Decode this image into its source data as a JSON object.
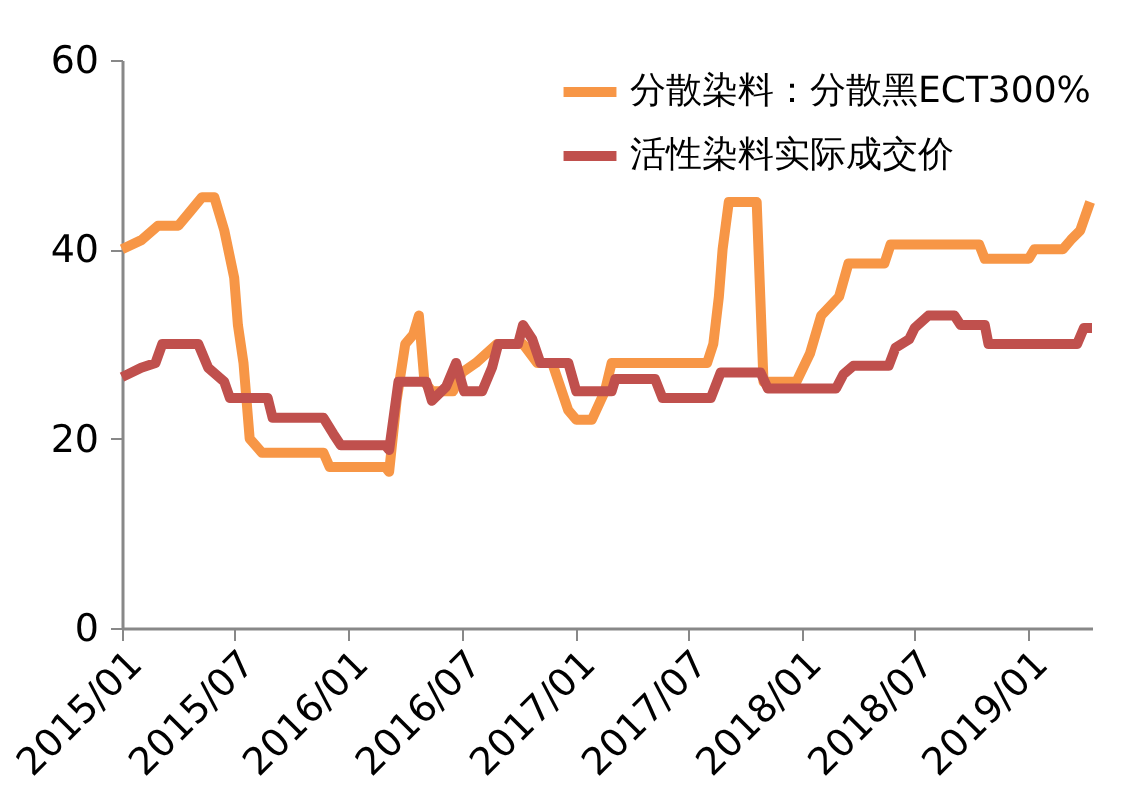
{
  "chart_data": {
    "type": "line",
    "xlim": [
      "2015-01-01",
      "2019-04-15"
    ],
    "xticks": [
      {
        "value": "2015-01",
        "label": "2015/01"
      },
      {
        "value": "2015-07",
        "label": "2015/07"
      },
      {
        "value": "2016-01",
        "label": "2016/01"
      },
      {
        "value": "2016-07",
        "label": "2016/07"
      },
      {
        "value": "2017-01",
        "label": "2017/01"
      },
      {
        "value": "2017-07",
        "label": "2017/07"
      },
      {
        "value": "2018-01",
        "label": "2018/01"
      },
      {
        "value": "2018-07",
        "label": "2018/07"
      },
      {
        "value": "2019-01",
        "label": "2019/01"
      }
    ],
    "ylim": [
      0,
      60
    ],
    "yticks": [
      0,
      20,
      40,
      60
    ],
    "grid": false,
    "legend": "top right",
    "marker": "none",
    "line_style": "solid",
    "series": [
      {
        "name": "分散染料：分散黑ECT300%",
        "color": "#f79646",
        "x": [
          "2015-01-01",
          "2015-02-02",
          "2015-02-28",
          "2015-04-02",
          "2015-04-21",
          "2015-05-10",
          "2015-05-30",
          "2015-06-15",
          "2015-07-01",
          "2015-07-07",
          "2015-07-16",
          "2015-07-26",
          "2015-08-15",
          "2015-11-22",
          "2015-12-02",
          "2016-03-01",
          "2016-03-07",
          "2016-03-19",
          "2016-04-02",
          "2016-04-15",
          "2016-04-24",
          "2016-05-03",
          "2016-05-15",
          "2016-06-18",
          "2016-07-03",
          "2016-07-25",
          "2016-08-28",
          "2016-10-09",
          "2016-11-01",
          "2016-11-25",
          "2016-12-21",
          "2017-01-03",
          "2017-01-28",
          "2017-02-18",
          "2017-03-01",
          "2017-08-02",
          "2017-08-12",
          "2017-08-21",
          "2017-08-27",
          "2017-09-06",
          "2017-10-21",
          "2017-11-01",
          "2017-12-24",
          "2018-01-15",
          "2018-02-02",
          "2018-03-03",
          "2018-03-18",
          "2018-05-15",
          "2018-05-25",
          "2018-10-15",
          "2018-10-24",
          "2019-01-03",
          "2019-01-12",
          "2019-02-27",
          "2019-03-12",
          "2019-03-27",
          "2019-04-12"
        ],
        "values": [
          40,
          41,
          42.5,
          42.5,
          44,
          45.5,
          45.5,
          42,
          37,
          32,
          28,
          20,
          18.5,
          18.5,
          17,
          17,
          16.5,
          24,
          30,
          31,
          33,
          26,
          25,
          25,
          27,
          28,
          30,
          30,
          28,
          28,
          23,
          22,
          22,
          25,
          28,
          28,
          30,
          35,
          40,
          45,
          45,
          26,
          26,
          29,
          33,
          35,
          38.5,
          38.5,
          40.5,
          40.5,
          39,
          39,
          40,
          40,
          41,
          42,
          45
        ]
      },
      {
        "name": "活性染料实际成交价",
        "color": "#c0504d",
        "x": [
          "2015-01-01",
          "2015-02-01",
          "2015-02-24",
          "2015-03-07",
          "2015-05-04",
          "2015-05-20",
          "2015-06-15",
          "2015-06-24",
          "2015-08-24",
          "2015-09-01",
          "2015-11-22",
          "2015-12-08",
          "2015-12-20",
          "2016-03-01",
          "2016-03-07",
          "2016-03-22",
          "2016-05-06",
          "2016-05-15",
          "2016-06-07",
          "2016-06-23",
          "2016-07-06",
          "2016-08-04",
          "2016-08-20",
          "2016-08-30",
          "2016-10-01",
          "2016-10-09",
          "2016-10-24",
          "2016-11-06",
          "2016-12-21",
          "2017-01-03",
          "2017-03-01",
          "2017-03-07",
          "2017-05-10",
          "2017-05-22",
          "2017-08-08",
          "2017-08-24",
          "2017-10-27",
          "2017-11-08",
          "2018-02-26",
          "2018-03-10",
          "2018-03-26",
          "2018-05-22",
          "2018-06-02",
          "2018-06-24",
          "2018-07-03",
          "2018-07-25",
          "2018-09-05",
          "2018-09-15",
          "2018-10-24",
          "2018-10-30",
          "2019-03-22",
          "2019-04-02",
          "2019-04-15"
        ],
        "values": [
          26.5,
          27.5,
          28,
          30,
          30,
          27.5,
          26,
          24.3,
          24.3,
          22.2,
          22.2,
          20.5,
          19.3,
          19.3,
          18.8,
          26,
          26,
          24,
          25.5,
          28,
          25,
          25,
          27.5,
          30,
          30,
          32,
          30.5,
          28,
          28,
          25,
          25,
          26.3,
          26.3,
          24.3,
          24.3,
          27,
          27,
          25.3,
          25.3,
          26.8,
          27.7,
          27.7,
          29.6,
          30.5,
          31.7,
          33,
          33,
          32,
          32,
          30,
          30,
          31.7,
          31.7
        ]
      }
    ]
  }
}
